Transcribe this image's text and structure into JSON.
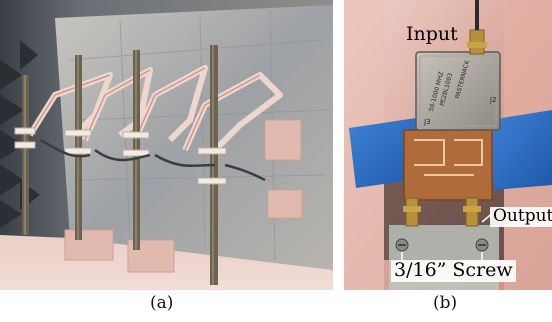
{
  "captions": {
    "a": "(a)",
    "b": "(b)"
  },
  "labels": {
    "input": "Input",
    "output": "Output",
    "screw": "3/16” Screw"
  },
  "photo_b_markings": {
    "brand": "PASTERNACK",
    "model": "PE2BL1003",
    "spec": "50-1000 MHZ",
    "port_j2": "J2",
    "port_j3": "J3"
  },
  "colors": {
    "foam": "#e8c8b8",
    "foil": "#a7a9ad",
    "rod": "#6b6250",
    "tape": "#2f6fc4",
    "brass": "#b8903c",
    "pcb": "#b06b3b"
  }
}
